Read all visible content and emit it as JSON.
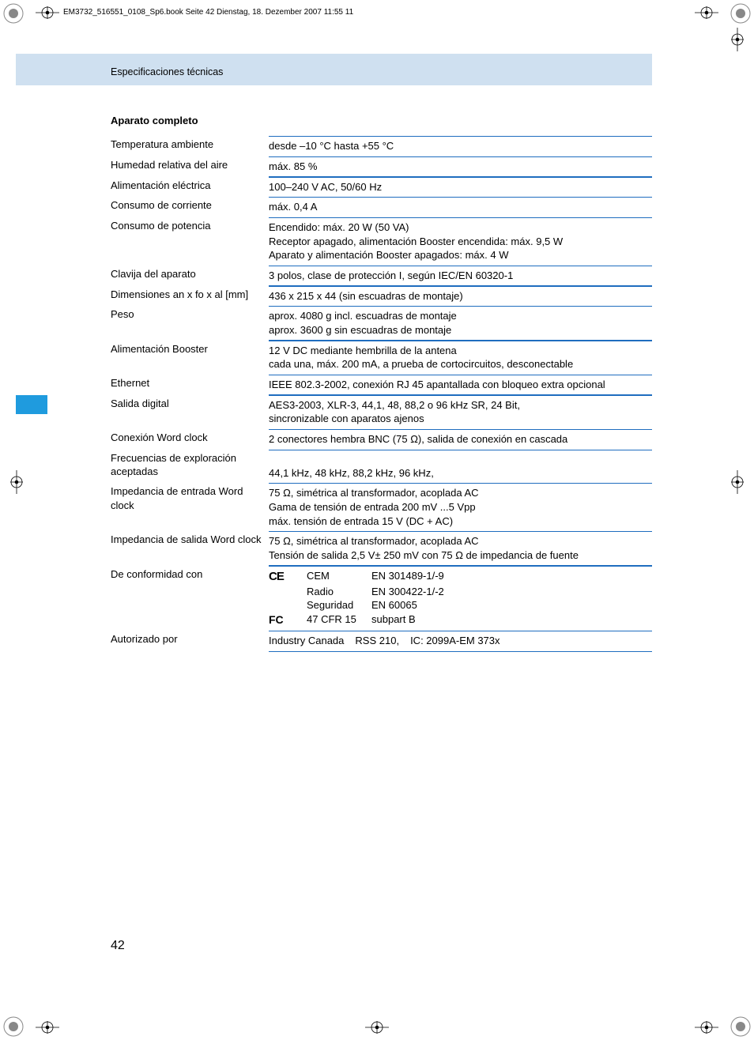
{
  "meta_line": "EM3732_516551_0108_Sp6.book  Seite 42  Dienstag, 18. Dezember 2007  11:55 11",
  "header": "Especificaciones técnicas",
  "section_title": "Aparato completo",
  "page_number": "42",
  "colors": {
    "header_band": "#cfe0f0",
    "side_tab": "#1f9bde",
    "rule": "#1f6dbf",
    "text": "#000000",
    "page_bg": "#ffffff"
  },
  "font": {
    "body_size_pt": 10,
    "title_size_pt": 10,
    "title_weight": "600",
    "page_num_size_pt": 12
  },
  "rows": [
    {
      "label": "Temperatura ambiente",
      "lines": [
        "desde –10 °C hasta +55 °C"
      ]
    },
    {
      "label": "Humedad relativa del aire",
      "lines": [
        "máx. 85 %"
      ]
    },
    {
      "label": "Alimentación eléctrica",
      "lines": [
        "100–240 V AC, 50/60 Hz"
      ]
    },
    {
      "label": "Consumo de corriente",
      "lines": [
        "máx. 0,4 A"
      ]
    },
    {
      "label": "Consumo de potencia",
      "lines": [
        "Encendido: máx. 20 W (50 VA)",
        "Receptor apagado, alimentación Booster encendida: máx. 9,5 W",
        "Aparato y alimentación Booster apagados: máx. 4 W"
      ]
    },
    {
      "label": "Clavija del aparato",
      "lines": [
        "3 polos, clase de protección I, según IEC/EN 60320-1"
      ]
    },
    {
      "label": "Dimensiones an x fo x al [mm]",
      "lines": [
        "436 x 215 x 44 (sin escuadras de montaje)"
      ]
    },
    {
      "label": "Peso",
      "lines": [
        "aprox. 4080 g incl. escuadras de montaje",
        "aprox. 3600 g sin escuadras de montaje"
      ]
    },
    {
      "label": "Alimentación Booster",
      "lines": [
        "12 V DC mediante hembrilla de la antena",
        "cada una, máx. 200 mA, a prueba de cortocircuitos, desconectable"
      ]
    },
    {
      "label": "Ethernet",
      "lines": [
        "IEEE 802.3-2002, conexión RJ 45 apantallada con bloqueo extra opcional"
      ]
    },
    {
      "label": "Salida digital",
      "lines": [
        "AES3-2003, XLR-3, 44,1, 48, 88,2 o 96 kHz SR, 24 Bit,",
        "sincronizable con aparatos ajenos"
      ]
    },
    {
      "label": "Conexión Word clock",
      "lines": [
        "2 conectores hembra BNC (75 Ω), salida de conexión en cascada"
      ]
    },
    {
      "label": "Frecuencias de exploración aceptadas",
      "lines": [
        "44,1 kHz, 48 kHz, 88,2 kHz, 96 kHz,"
      ],
      "label_pad_bottom": true
    },
    {
      "label": "Impedancia de entrada Word clock",
      "lines": [
        "75 Ω, simétrica al transformador, acoplada AC",
        "Gama de tensión de entrada 200 mV ...5 Vpp",
        "máx. tensión de entrada 15 V (DC + AC)"
      ]
    },
    {
      "label": "Impedancia de salida Word clock",
      "lines": [
        "75 Ω, simétrica al transformador, acoplada AC",
        "Tensión de salida 2,5 V± 250 mV con 75 Ω de impedancia de fuente"
      ]
    }
  ],
  "conformity": {
    "label": "De conformidad con",
    "ce_mark": "CE",
    "fc_mark": "FC",
    "entries": [
      {
        "mark": "ce",
        "cat": "CEM",
        "std": "EN 301489-1/-9"
      },
      {
        "mark": "",
        "cat": "Radio",
        "std": "EN 300422-1/-2"
      },
      {
        "mark": "",
        "cat": "Seguridad",
        "std": "EN 60065"
      },
      {
        "mark": "fc",
        "cat": "47 CFR 15",
        "std": "subpart B"
      }
    ]
  },
  "authorized": {
    "label": "Autorizado por",
    "parts": [
      "Industry Canada",
      "RSS 210,",
      "IC: 2099A-EM 373x"
    ]
  }
}
